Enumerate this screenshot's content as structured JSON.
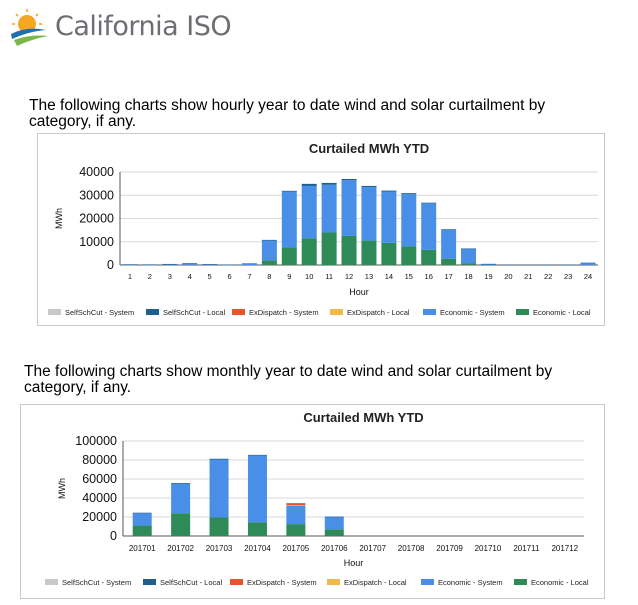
{
  "header": {
    "logo_text": "California ISO",
    "logo_colors": {
      "sun": "#f5a623",
      "swoosh_blue": "#1f6fae",
      "swoosh_green": "#7ab648"
    }
  },
  "intro_hourly": "The following charts show hourly year to date wind and solar curtailment by category, if any.",
  "intro_monthly": "The following charts show monthly year to date wind and solar curtailment by category, if any.",
  "legend": [
    {
      "name": "SelfSchCut - System",
      "color": "#c8c8c8"
    },
    {
      "name": "SelfSchCut - Local",
      "color": "#1f5f8f"
    },
    {
      "name": "ExDispatch - System",
      "color": "#e8542a"
    },
    {
      "name": "ExDispatch - Local",
      "color": "#f2b84a"
    },
    {
      "name": "Economic - System",
      "color": "#4a8fe7"
    },
    {
      "name": "Economic - Local",
      "color": "#2e8b57"
    }
  ],
  "chart_data": [
    {
      "type": "bar",
      "stacked": true,
      "title": "Curtailed MWh YTD",
      "xlabel": "Hour",
      "ylabel": "MWh",
      "ylim": [
        0,
        40000
      ],
      "yticks": [
        0,
        10000,
        20000,
        30000,
        40000
      ],
      "ytick_labels": [
        "0",
        "10000",
        "20000",
        "30000",
        "40000"
      ],
      "grid": true,
      "legend_position": "bottom",
      "categories": [
        "1",
        "2",
        "3",
        "4",
        "5",
        "6",
        "7",
        "8",
        "9",
        "10",
        "11",
        "12",
        "13",
        "14",
        "15",
        "16",
        "17",
        "18",
        "19",
        "20",
        "21",
        "22",
        "23",
        "24"
      ],
      "series": [
        {
          "name": "SelfSchCut - System",
          "values": [
            0,
            0,
            0,
            0,
            0,
            0,
            0,
            0,
            0,
            0,
            0,
            0,
            0,
            0,
            0,
            0,
            0,
            0,
            0,
            0,
            0,
            0,
            0,
            0
          ]
        },
        {
          "name": "SelfSchCut - Local",
          "values": [
            200,
            150,
            250,
            300,
            200,
            100,
            200,
            300,
            400,
            900,
            800,
            500,
            500,
            500,
            400,
            300,
            200,
            100,
            100,
            50,
            50,
            50,
            100,
            200
          ]
        },
        {
          "name": "ExDispatch - System",
          "values": [
            0,
            0,
            0,
            0,
            0,
            0,
            0,
            0,
            0,
            0,
            0,
            0,
            0,
            0,
            0,
            0,
            0,
            0,
            0,
            0,
            0,
            0,
            0,
            0
          ]
        },
        {
          "name": "ExDispatch - Local",
          "values": [
            0,
            0,
            0,
            0,
            0,
            0,
            0,
            0,
            0,
            0,
            0,
            0,
            0,
            0,
            0,
            0,
            0,
            0,
            0,
            0,
            0,
            0,
            0,
            0
          ]
        },
        {
          "name": "Economic - System",
          "values": [
            100,
            100,
            200,
            500,
            200,
            100,
            500,
            8500,
            24000,
            22500,
            20500,
            24000,
            23000,
            22000,
            22500,
            20000,
            12500,
            6200,
            400,
            0,
            0,
            0,
            0,
            800
          ]
        },
        {
          "name": "Economic - Local",
          "values": [
            0,
            0,
            0,
            0,
            0,
            0,
            0,
            2000,
            7500,
            11500,
            14000,
            12500,
            10500,
            9500,
            8000,
            6500,
            2700,
            800,
            0,
            0,
            0,
            0,
            0,
            0
          ]
        }
      ]
    },
    {
      "type": "bar",
      "stacked": true,
      "title": "Curtailed MWh YTD",
      "xlabel": "Hour",
      "ylabel": "MWh",
      "ylim": [
        0,
        100000
      ],
      "yticks": [
        0,
        20000,
        40000,
        60000,
        80000,
        100000
      ],
      "ytick_labels": [
        "0",
        "20000",
        "40000",
        "60000",
        "80000",
        "100000"
      ],
      "grid": true,
      "legend_position": "bottom",
      "categories": [
        "201701",
        "201702",
        "201703",
        "201704",
        "201705",
        "201706",
        "201707",
        "201708",
        "201709",
        "201710",
        "201711",
        "201712"
      ],
      "series": [
        {
          "name": "SelfSchCut - System",
          "values": [
            0,
            0,
            0,
            0,
            0,
            0,
            0,
            0,
            0,
            0,
            0,
            0
          ]
        },
        {
          "name": "SelfSchCut - Local",
          "values": [
            500,
            800,
            800,
            900,
            700,
            400,
            0,
            0,
            0,
            0,
            0,
            0
          ]
        },
        {
          "name": "ExDispatch - System",
          "values": [
            0,
            0,
            0,
            0,
            1200,
            0,
            0,
            0,
            0,
            0,
            0,
            0
          ]
        },
        {
          "name": "ExDispatch - Local",
          "values": [
            0,
            0,
            0,
            0,
            600,
            0,
            0,
            0,
            0,
            0,
            0,
            0
          ]
        },
        {
          "name": "Economic - System",
          "values": [
            13000,
            31000,
            61000,
            70000,
            19500,
            13000,
            0,
            0,
            0,
            0,
            0,
            0
          ]
        },
        {
          "name": "Economic - Local",
          "values": [
            11000,
            24000,
            19500,
            14500,
            12500,
            7000,
            0,
            0,
            0,
            0,
            0,
            0
          ]
        }
      ]
    }
  ]
}
